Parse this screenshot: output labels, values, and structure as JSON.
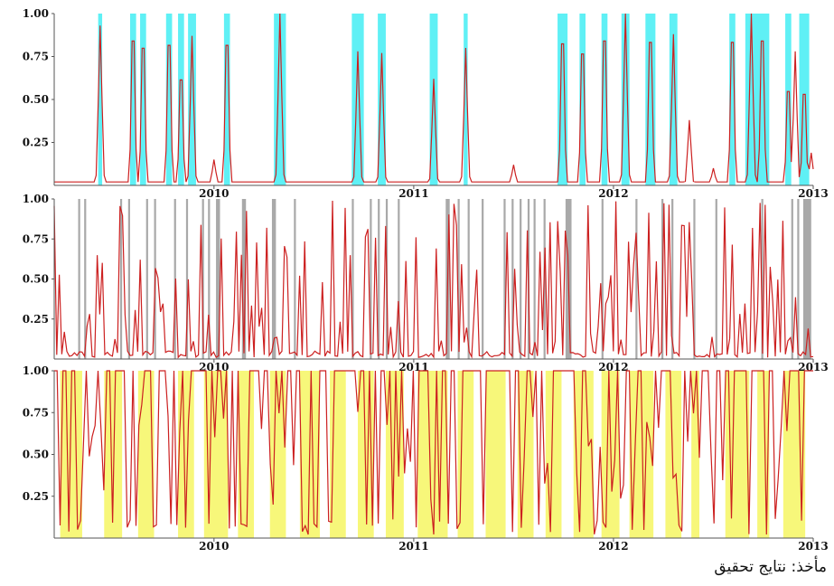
{
  "caption": "مأخذ: نتايج تحقيق",
  "chart_data": [
    {
      "type": "line",
      "ylim": [
        0,
        1
      ],
      "xlim": [
        2009.2,
        2013.0
      ],
      "yticks": [
        "0.25",
        "0.50",
        "0.75",
        "1.00"
      ],
      "xticks": [
        "2010",
        "2011",
        "2012",
        "2013"
      ],
      "colors": {
        "line": "#cc2020",
        "band": "#5ff0f5",
        "axis": "#555555"
      },
      "bands": [
        [
          2009.42,
          2009.44
        ],
        [
          2009.58,
          2009.61
        ],
        [
          2009.63,
          2009.66
        ],
        [
          2009.76,
          2009.79
        ],
        [
          2009.82,
          2009.85
        ],
        [
          2009.87,
          2009.91
        ],
        [
          2010.05,
          2010.08
        ],
        [
          2010.3,
          2010.36
        ],
        [
          2010.69,
          2010.75
        ],
        [
          2010.82,
          2010.86
        ],
        [
          2011.08,
          2011.12
        ],
        [
          2011.25,
          2011.27
        ],
        [
          2011.72,
          2011.77
        ],
        [
          2011.83,
          2011.86
        ],
        [
          2011.94,
          2011.97
        ],
        [
          2012.04,
          2012.08
        ],
        [
          2012.16,
          2012.21
        ],
        [
          2012.28,
          2012.32
        ],
        [
          2012.58,
          2012.61
        ],
        [
          2012.66,
          2012.78
        ],
        [
          2012.86,
          2012.89
        ],
        [
          2012.93,
          2012.98
        ]
      ],
      "x": [
        2009.2,
        2009.28,
        2009.32,
        2009.35,
        2009.38,
        2009.4,
        2009.44,
        2009.47,
        2009.52,
        2009.55,
        2009.57,
        2009.59,
        2009.61,
        2009.63,
        2009.66,
        2009.7,
        2009.74,
        2009.77,
        2009.79,
        2009.81,
        2009.84,
        2009.86,
        2009.9,
        2009.95,
        2010.0,
        2010.04,
        2010.06,
        2010.1,
        2010.15,
        2010.2,
        2010.25,
        2010.3,
        2010.33,
        2010.36,
        2010.4,
        2010.45,
        2010.5,
        2010.55,
        2010.6,
        2010.65,
        2010.69,
        2010.72,
        2010.75,
        2010.79,
        2010.82,
        2010.84,
        2010.87,
        2010.92,
        2010.97,
        2011.02,
        2011.06,
        2011.09,
        2011.11,
        2011.15,
        2011.2,
        2011.24,
        2011.26,
        2011.3,
        2011.4,
        2011.5,
        2011.55,
        2011.6,
        2011.65,
        2011.7,
        2011.72,
        2011.75,
        2011.78,
        2011.81,
        2011.84,
        2011.86,
        2011.9,
        2011.95,
        2011.98,
        2012.02,
        2012.05,
        2012.08,
        2012.12,
        2012.16,
        2012.19,
        2012.21,
        2012.24,
        2012.28,
        2012.3,
        2012.33,
        2012.37,
        2012.42,
        2012.47,
        2012.52,
        2012.56,
        2012.59,
        2012.62,
        2012.65,
        2012.68,
        2012.71,
        2012.74,
        2012.77,
        2012.81,
        2012.85,
        2012.87,
        2012.9,
        2012.93,
        2012.95,
        2012.98,
        2013.0
      ],
      "y": [
        0.02,
        0.02,
        0.02,
        0.02,
        0.02,
        0.02,
        0.02,
        0.02,
        0.02,
        0.02,
        0.02,
        0.02,
        0.02,
        0.02,
        0.02,
        0.02,
        0.02,
        0.02,
        0.02,
        0.02,
        0.02,
        0.02,
        0.02,
        0.02,
        0.02,
        0.02,
        0.02,
        0.02,
        0.02,
        0.02,
        0.02,
        0.02,
        0.02,
        0.02,
        0.02,
        0.02,
        0.02,
        0.02,
        0.02,
        0.02,
        0.02,
        0.02,
        0.02,
        0.02,
        0.02,
        0.02,
        0.02,
        0.02,
        0.02,
        0.02,
        0.02,
        0.02,
        0.02,
        0.02,
        0.02,
        0.02,
        0.02,
        0.02,
        0.02,
        0.02,
        0.02,
        0.02,
        0.02,
        0.02,
        0.02,
        0.02,
        0.02,
        0.02,
        0.02,
        0.02,
        0.02,
        0.02,
        0.02,
        0.02,
        0.02,
        0.02,
        0.02,
        0.02,
        0.02,
        0.02,
        0.02,
        0.02,
        0.02,
        0.02,
        0.02,
        0.02,
        0.02,
        0.02,
        0.02,
        0.02,
        0.02,
        0.02,
        0.02,
        0.02,
        0.02,
        0.02,
        0.02,
        0.02,
        0.02,
        0.02,
        0.02,
        0.02,
        0.02,
        0.02
      ]
    },
    {
      "type": "line",
      "ylim": [
        0,
        1
      ],
      "xlim": [
        2009.2,
        2013.0
      ],
      "yticks": [
        "0.25",
        "0.50",
        "0.75",
        "1.00"
      ],
      "xticks": [
        "2010",
        "2011",
        "2012",
        "2013"
      ],
      "colors": {
        "line": "#cc2020",
        "band": "#a9a9a9",
        "axis": "#555555"
      },
      "bands": [
        [
          2009.32,
          2009.33
        ],
        [
          2009.35,
          2009.36
        ],
        [
          2009.53,
          2009.54
        ],
        [
          2009.57,
          2009.58
        ],
        [
          2009.66,
          2009.67
        ],
        [
          2009.7,
          2009.71
        ],
        [
          2009.8,
          2009.81
        ],
        [
          2009.86,
          2009.87
        ],
        [
          2009.94,
          2009.95
        ],
        [
          2009.97,
          2009.98
        ],
        [
          2010.01,
          2010.03
        ],
        [
          2010.14,
          2010.16
        ],
        [
          2010.29,
          2010.31
        ],
        [
          2010.4,
          2010.41
        ],
        [
          2010.69,
          2010.7
        ],
        [
          2010.78,
          2010.79
        ],
        [
          2010.82,
          2010.83
        ],
        [
          2010.86,
          2010.87
        ],
        [
          2010.92,
          2010.93
        ],
        [
          2011.16,
          2011.18
        ],
        [
          2011.22,
          2011.23
        ],
        [
          2011.27,
          2011.28
        ],
        [
          2011.34,
          2011.35
        ],
        [
          2011.45,
          2011.46
        ],
        [
          2011.49,
          2011.5
        ],
        [
          2011.53,
          2011.54
        ],
        [
          2011.57,
          2011.58
        ],
        [
          2011.6,
          2011.61
        ],
        [
          2011.65,
          2011.66
        ],
        [
          2011.76,
          2011.79
        ],
        [
          2011.94,
          2011.95
        ],
        [
          2012.11,
          2012.12
        ],
        [
          2012.24,
          2012.25
        ],
        [
          2012.29,
          2012.3
        ],
        [
          2012.4,
          2012.41
        ],
        [
          2012.51,
          2012.52
        ],
        [
          2012.74,
          2012.75
        ],
        [
          2012.89,
          2012.9
        ],
        [
          2012.92,
          2012.93
        ],
        [
          2012.95,
          2012.99
        ]
      ],
      "x": [
        2009.2,
        2009.25
      ],
      "y": [
        0.02,
        0.02
      ]
    },
    {
      "type": "line",
      "ylim": [
        0,
        1
      ],
      "xlim": [
        2009.2,
        2013.0
      ],
      "yticks": [
        "0.25",
        "0.50",
        "0.75",
        "1.00"
      ],
      "xticks": [
        "2010",
        "2011",
        "2012",
        "2013"
      ],
      "colors": {
        "line": "#cc2020",
        "band": "#f7f77a",
        "axis": "#555555"
      },
      "bands": [
        [
          2009.23,
          2009.34
        ],
        [
          2009.45,
          2009.54
        ],
        [
          2009.62,
          2009.7
        ],
        [
          2009.82,
          2009.9
        ],
        [
          2009.95,
          2010.07
        ],
        [
          2010.12,
          2010.2
        ],
        [
          2010.28,
          2010.36
        ],
        [
          2010.43,
          2010.53
        ],
        [
          2010.58,
          2010.66
        ],
        [
          2010.72,
          2010.8
        ],
        [
          2010.86,
          2010.95
        ],
        [
          2011.02,
          2011.17
        ],
        [
          2011.22,
          2011.3
        ],
        [
          2011.36,
          2011.46
        ],
        [
          2011.52,
          2011.6
        ],
        [
          2011.66,
          2011.74
        ],
        [
          2011.8,
          2011.9
        ],
        [
          2011.94,
          2012.03
        ],
        [
          2012.08,
          2012.2
        ],
        [
          2012.26,
          2012.34
        ],
        [
          2012.39,
          2012.43
        ],
        [
          2012.56,
          2012.68
        ],
        [
          2012.72,
          2012.78
        ],
        [
          2012.85,
          2012.96
        ]
      ],
      "x": [
        2009.2,
        2009.25
      ],
      "y": [
        0.02,
        0.02
      ]
    }
  ]
}
